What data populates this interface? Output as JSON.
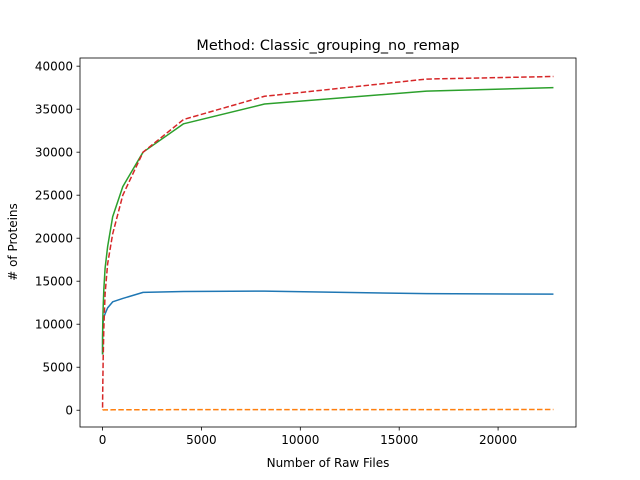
{
  "chart_data": {
    "type": "line",
    "title": "Method: Classic_grouping_no_remap",
    "xlabel": "Number of Raw Files",
    "ylabel": "# of Proteins",
    "xlim": [
      -1140,
      23940
    ],
    "ylim": [
      -1950,
      40950
    ],
    "xticks": [
      0,
      5000,
      10000,
      15000,
      20000
    ],
    "yticks": [
      0,
      5000,
      10000,
      15000,
      20000,
      25000,
      30000,
      35000,
      40000
    ],
    "grid": false,
    "legend": "none",
    "series": [
      {
        "color": "#1f77b4",
        "dash": "solid",
        "x": [
          1,
          2,
          4,
          8,
          16,
          32,
          64,
          128,
          256,
          512,
          1024,
          2048,
          4096,
          8192,
          16384,
          22800
        ],
        "y": [
          6500,
          7500,
          8300,
          9000,
          9700,
          10300,
          10800,
          11200,
          11900,
          12600,
          13000,
          13700,
          13800,
          13850,
          13550,
          13500
        ]
      },
      {
        "color": "#ff7f0e",
        "dash": "dashed",
        "x": [
          1,
          2,
          4,
          8,
          16,
          32,
          64,
          128,
          256,
          512,
          1024,
          2048,
          4096,
          8192,
          16384,
          22800
        ],
        "y": [
          5,
          10,
          15,
          20,
          25,
          30,
          35,
          40,
          45,
          50,
          55,
          60,
          65,
          70,
          75,
          80
        ]
      },
      {
        "color": "#2ca02c",
        "dash": "solid",
        "x": [
          1,
          2,
          4,
          8,
          16,
          32,
          64,
          128,
          256,
          512,
          1024,
          2048,
          4096,
          8192,
          16384,
          22800
        ],
        "y": [
          6500,
          7600,
          8600,
          9600,
          10800,
          12000,
          14000,
          16500,
          19000,
          22500,
          26000,
          30000,
          33300,
          35600,
          37100,
          37500
        ]
      },
      {
        "color": "#d62728",
        "dash": "dashed",
        "x": [
          1,
          2,
          4,
          8,
          16,
          32,
          64,
          128,
          256,
          512,
          1024,
          2048,
          4096,
          8192,
          16384,
          22800
        ],
        "y": [
          300,
          600,
          1000,
          2000,
          3500,
          6000,
          9500,
          13500,
          17000,
          20500,
          25000,
          30000,
          33800,
          36500,
          38500,
          38800
        ]
      }
    ]
  }
}
